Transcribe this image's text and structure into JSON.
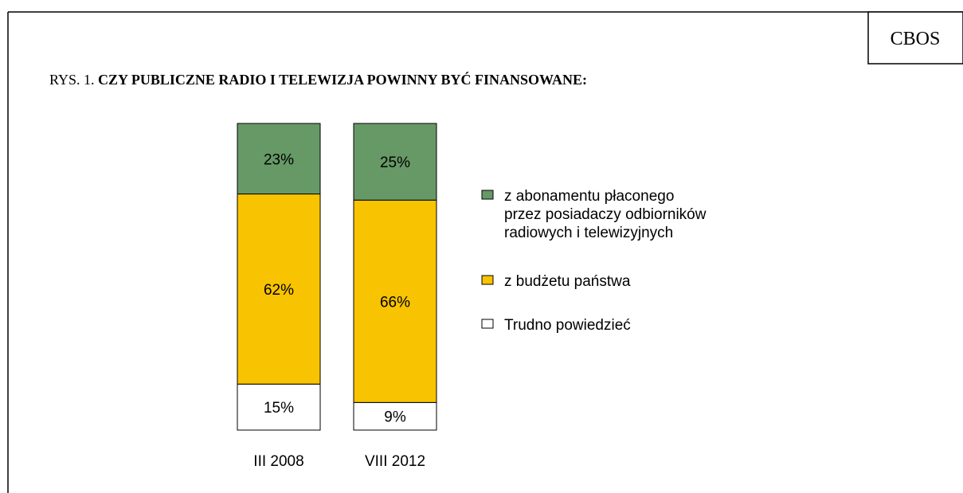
{
  "chart_data": {
    "type": "stacked_bar",
    "source": "CBOS",
    "title_prefix": "RYS. 1.",
    "title": "CZY PUBLICZNE RADIO I TELEWIZJA POWINNY BYĆ FINANSOWANE:",
    "categories": [
      "III 2008",
      "VIII 2012"
    ],
    "series": [
      {
        "name": "Trudno powiedzieć",
        "color": "#ffffff",
        "values": [
          15,
          9
        ],
        "value_labels": [
          "15%",
          "9%"
        ]
      },
      {
        "name": "z budżetu państwa",
        "color": "#f8c300",
        "values": [
          62,
          66
        ],
        "value_labels": [
          "62%",
          "66%"
        ]
      },
      {
        "name": "z abonamentu płaconego\nprzez posiadaczy odbiorników\nradiowych i telewizyjnych",
        "color": "#669966",
        "values": [
          23,
          25
        ],
        "value_labels": [
          "23%",
          "25%"
        ]
      }
    ]
  }
}
